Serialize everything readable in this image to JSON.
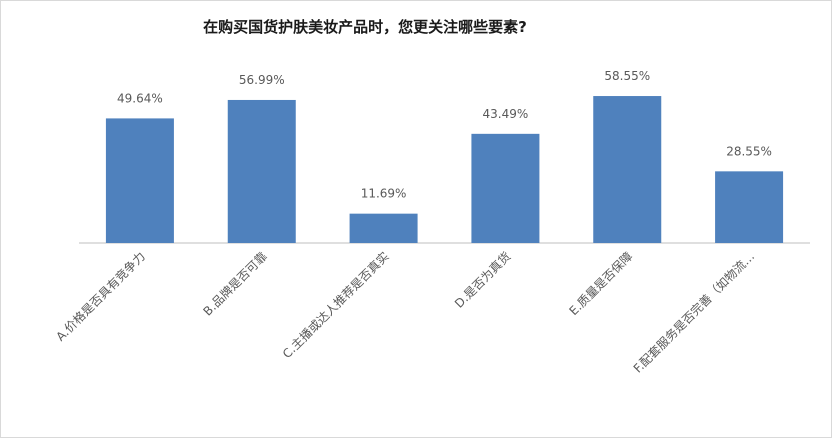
{
  "chart_data": {
    "type": "bar",
    "title": "在购买国货护肤美妆产品时，您更关注哪些要素?",
    "categories": [
      "A.价格是否具有竞争力",
      "B.品牌是否可靠",
      "C.主播或达人推荐是否真实",
      "D.是否为真货",
      "E.质量是否保障",
      "F.配套服务是否完善（如物流…"
    ],
    "values": [
      49.64,
      56.99,
      11.69,
      43.49,
      58.55,
      28.55
    ],
    "value_labels": [
      "49.64%",
      "56.99%",
      "11.69%",
      "43.49%",
      "58.55%",
      "28.55%"
    ],
    "color": "#4f81bd"
  }
}
